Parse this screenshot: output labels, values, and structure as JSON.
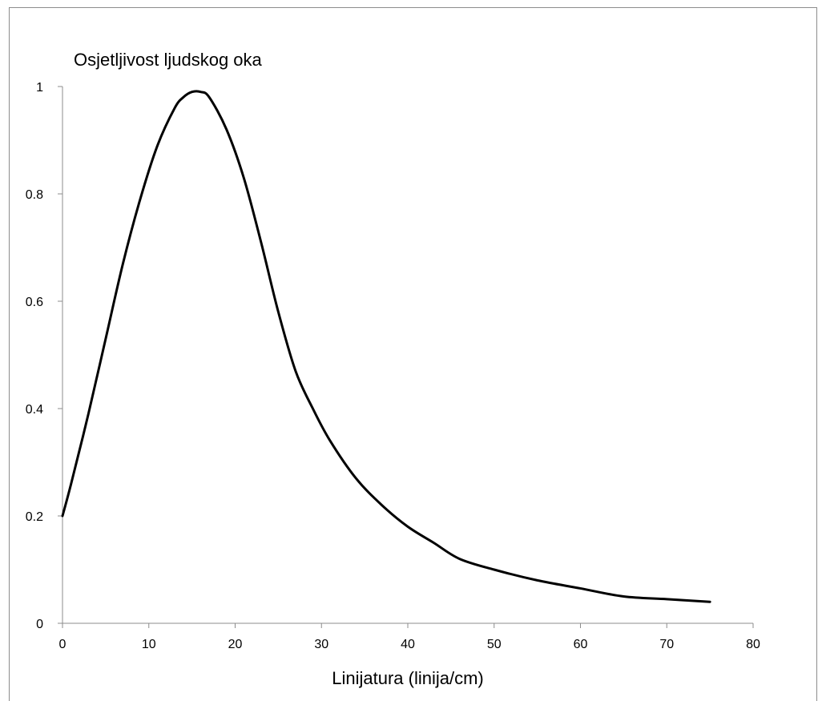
{
  "chart_data": {
    "type": "line",
    "title": "Osjetljivost ljudskog oka",
    "xlabel": "Linijatura (linija/cm)",
    "ylabel": "",
    "xlim": [
      0,
      80
    ],
    "ylim": [
      0,
      1
    ],
    "x_ticks": [
      "0",
      "10",
      "20",
      "30",
      "40",
      "50",
      "60",
      "70",
      "80"
    ],
    "y_ticks": [
      "0",
      "0.2",
      "0.4",
      "0.6",
      "0.8",
      "1"
    ],
    "grid": false,
    "legend": "none",
    "series": [
      {
        "color": "#000000",
        "x": [
          0,
          1,
          3,
          5,
          7,
          9,
          11,
          13,
          14,
          15,
          16,
          17,
          19,
          21,
          23,
          25,
          27,
          29,
          31,
          34,
          37,
          40,
          43,
          46,
          50,
          55,
          60,
          65,
          70,
          75
        ],
        "y": [
          0.2,
          0.26,
          0.39,
          0.53,
          0.67,
          0.79,
          0.89,
          0.96,
          0.98,
          0.99,
          0.99,
          0.98,
          0.92,
          0.83,
          0.71,
          0.58,
          0.47,
          0.4,
          0.34,
          0.27,
          0.22,
          0.18,
          0.15,
          0.12,
          0.1,
          0.08,
          0.065,
          0.05,
          0.045,
          0.04
        ]
      }
    ]
  }
}
